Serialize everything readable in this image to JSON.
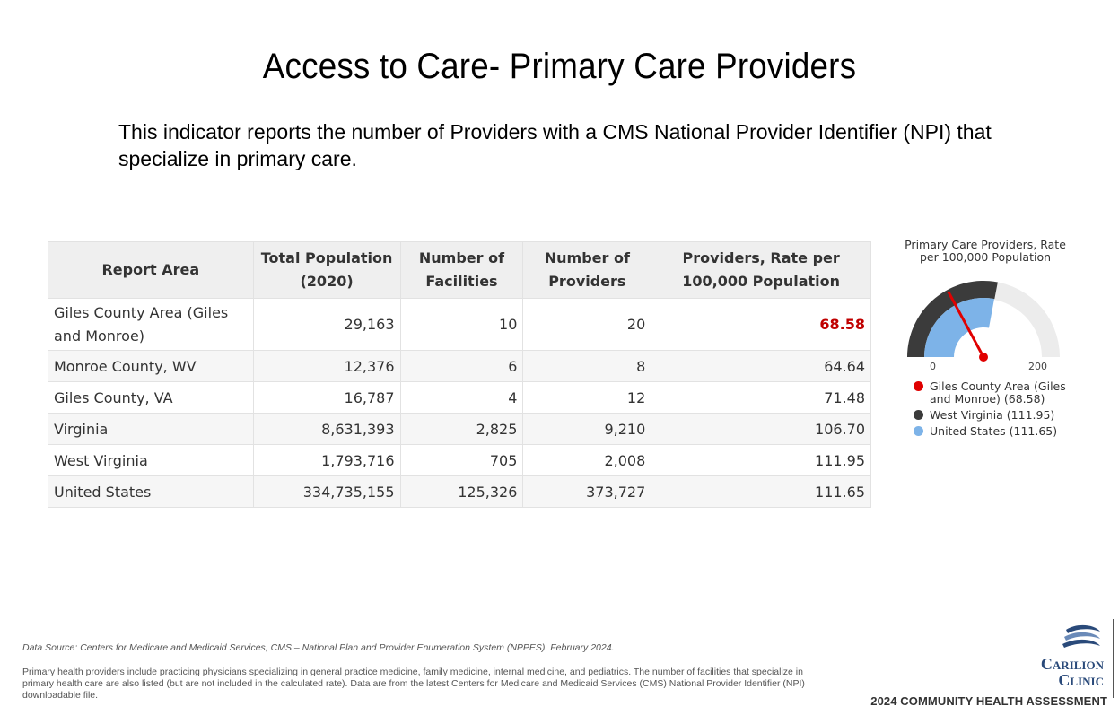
{
  "title": "Access to Care- Primary Care Providers",
  "subtitle": "This indicator reports the number of Providers with a CMS National Provider Identifier (NPI) that specialize in primary care.",
  "table": {
    "headers": [
      "Report Area",
      "Total Population (2020)",
      "Number of Facilities",
      "Number of Providers",
      "Providers, Rate per 100,000 Population"
    ],
    "rows": [
      [
        "Giles County Area (Giles and Monroe)",
        "29,163",
        "10",
        "20",
        "68.58"
      ],
      [
        "Monroe County, WV",
        "12,376",
        "6",
        "8",
        "64.64"
      ],
      [
        "Giles County, VA",
        "16,787",
        "4",
        "12",
        "71.48"
      ],
      [
        "Virginia",
        "8,631,393",
        "2,825",
        "9,210",
        "106.70"
      ],
      [
        "West Virginia",
        "1,793,716",
        "705",
        "2,008",
        "111.95"
      ],
      [
        "United States",
        "334,735,155",
        "125,326",
        "373,727",
        "111.65"
      ]
    ]
  },
  "gauge": {
    "title": "Primary Care Providers, Rate per 100,000 Population",
    "min_label": "0",
    "max_label": "200",
    "min": 0,
    "max": 200,
    "needle_value": 68.58,
    "outer_value": 111.95,
    "inner_value": 111.65,
    "colors": {
      "needle": "#e00000",
      "outer": "#3b3b3b",
      "inner": "#7db3e8",
      "track": "#ececec"
    },
    "legend": [
      {
        "label": "Giles County Area (Giles and Monroe) (68.58)",
        "color": "#e00000"
      },
      {
        "label": "West Virginia (111.95)",
        "color": "#3b3b3b"
      },
      {
        "label": "United States (111.65)",
        "color": "#7db3e8"
      }
    ]
  },
  "footer": {
    "source": "Data Source: Centers for Medicare and Medicaid Services, CMS – National Plan and Provider Enumeration System (NPPES). February 2024.",
    "note": "Primary health providers include practicing physicians specializing in general practice medicine, family medicine, internal medicine, and pediatrics. The number of facilities that specialize in primary health care are also listed (but are not included in the calculated rate). Data are from the latest Centers for Medicare and Medicaid Services (CMS) National Provider Identifier (NPI) downloadable file.",
    "logo_line1": "Carilion",
    "logo_line2": "Clinic",
    "assessment": "2024 COMMUNITY HEALTH ASSESSMENT"
  }
}
